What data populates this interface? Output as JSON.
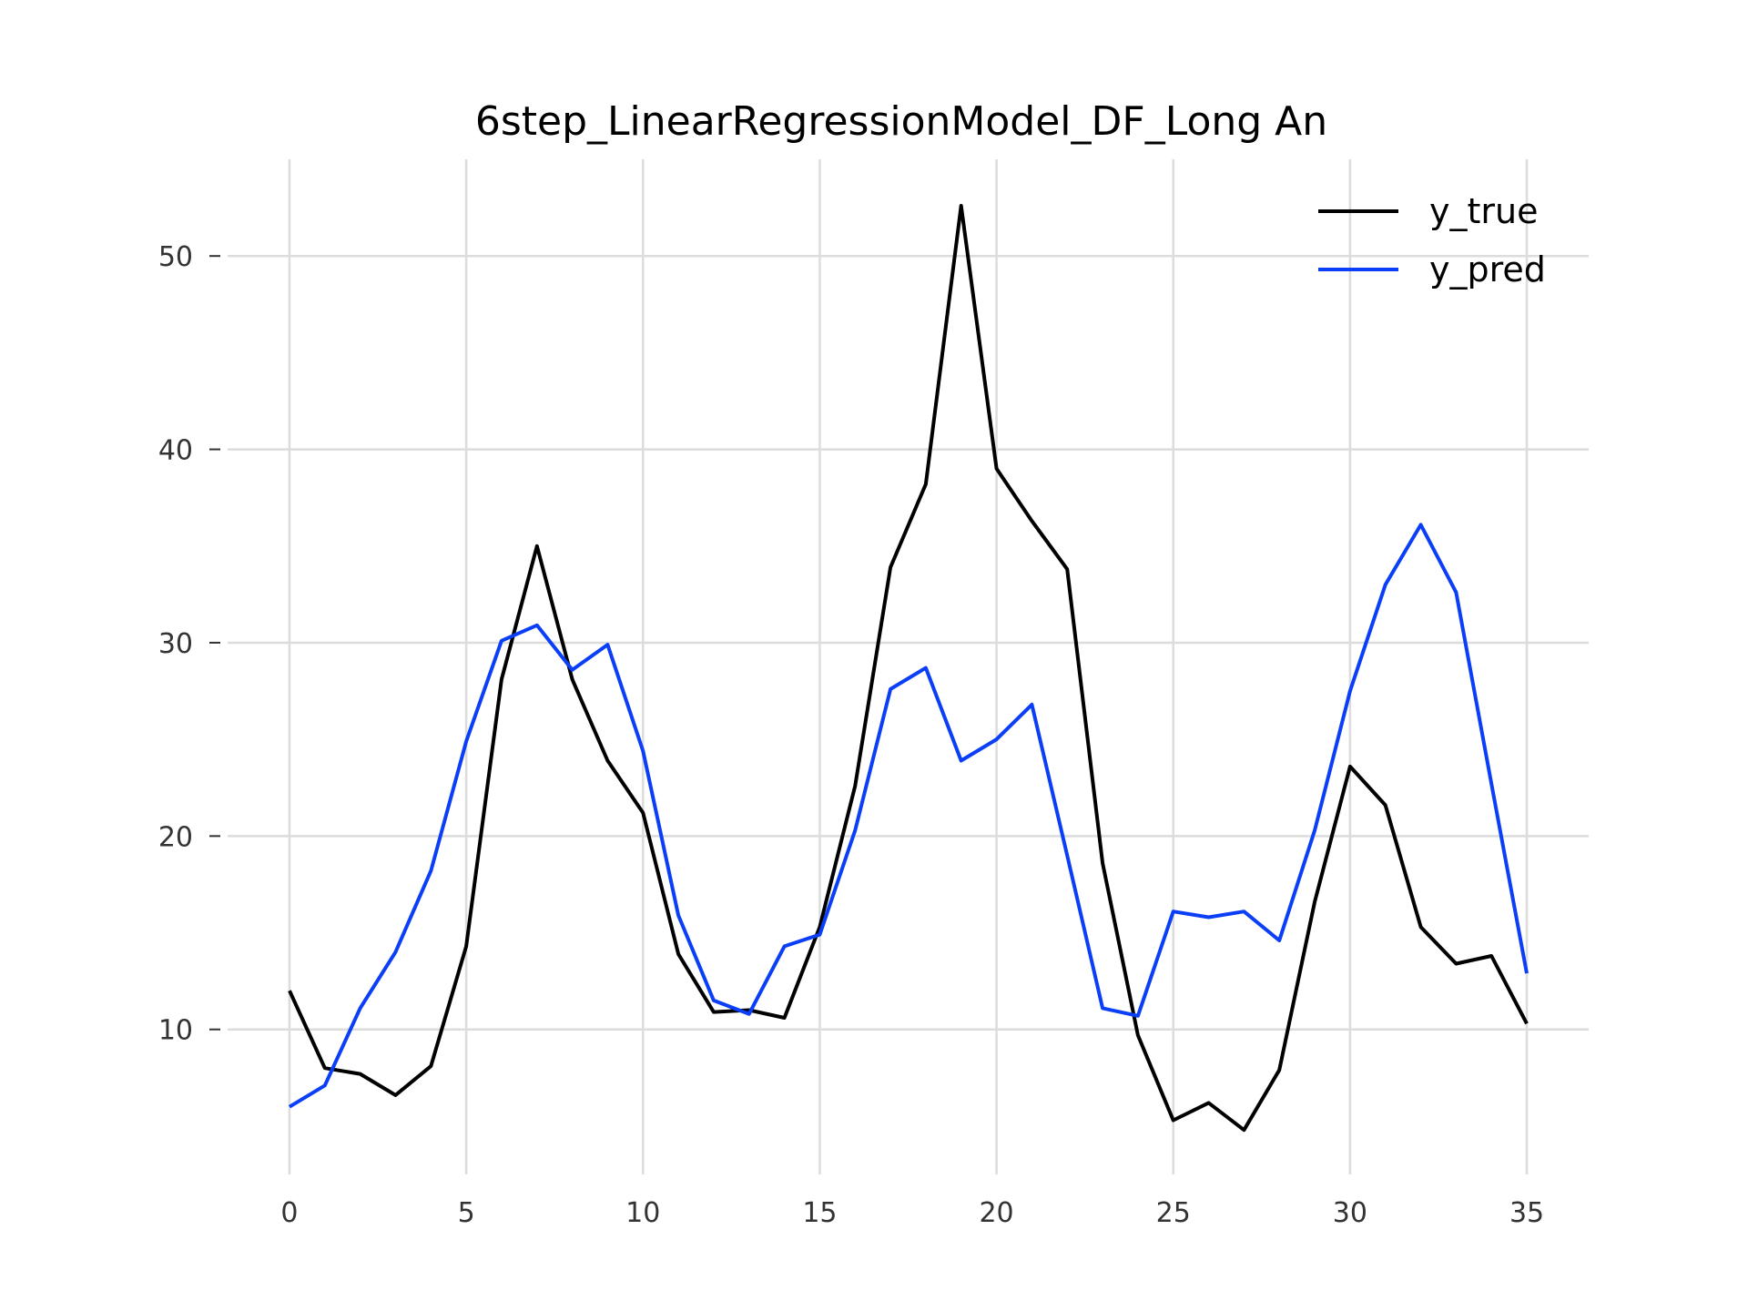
{
  "chart_data": {
    "type": "line",
    "title": "6step_LinearRegressionModel_DF_Long An",
    "xlabel": "",
    "ylabel": "",
    "xlim": [
      -1.75,
      36.75
    ],
    "ylim": [
      2.5,
      55
    ],
    "x_ticks": [
      0,
      5,
      10,
      15,
      20,
      25,
      30,
      35
    ],
    "y_ticks": [
      10,
      20,
      30,
      40,
      50
    ],
    "grid": true,
    "legend_position": "top-right",
    "x": [
      0,
      1,
      2,
      3,
      4,
      5,
      6,
      7,
      8,
      9,
      10,
      11,
      12,
      13,
      14,
      15,
      16,
      17,
      18,
      19,
      20,
      21,
      22,
      23,
      24,
      25,
      26,
      27,
      28,
      29,
      30,
      31,
      32,
      33,
      34,
      35
    ],
    "series": [
      {
        "name": "y_true",
        "color": "#000000",
        "values": [
          12.0,
          8.0,
          7.7,
          6.6,
          8.1,
          14.3,
          28.1,
          35.0,
          28.1,
          23.9,
          21.2,
          13.9,
          10.9,
          11.0,
          10.6,
          15.3,
          22.6,
          33.9,
          38.2,
          52.6,
          39.0,
          36.3,
          33.8,
          18.6,
          9.7,
          5.3,
          6.2,
          4.8,
          7.9,
          16.6,
          23.6,
          21.6,
          15.3,
          13.4,
          13.8,
          10.3
        ]
      },
      {
        "name": "y_pred",
        "color": "#0a3ff7",
        "values": [
          6.0,
          7.1,
          11.1,
          14.0,
          18.2,
          24.9,
          30.1,
          30.9,
          28.6,
          29.9,
          24.4,
          15.9,
          11.5,
          10.8,
          14.3,
          14.9,
          20.3,
          27.6,
          28.7,
          23.9,
          25.0,
          26.8,
          19.0,
          11.1,
          10.7,
          16.1,
          15.8,
          16.1,
          14.6,
          20.3,
          27.5,
          33.0,
          36.1,
          32.6,
          22.7,
          12.9
        ]
      }
    ]
  }
}
